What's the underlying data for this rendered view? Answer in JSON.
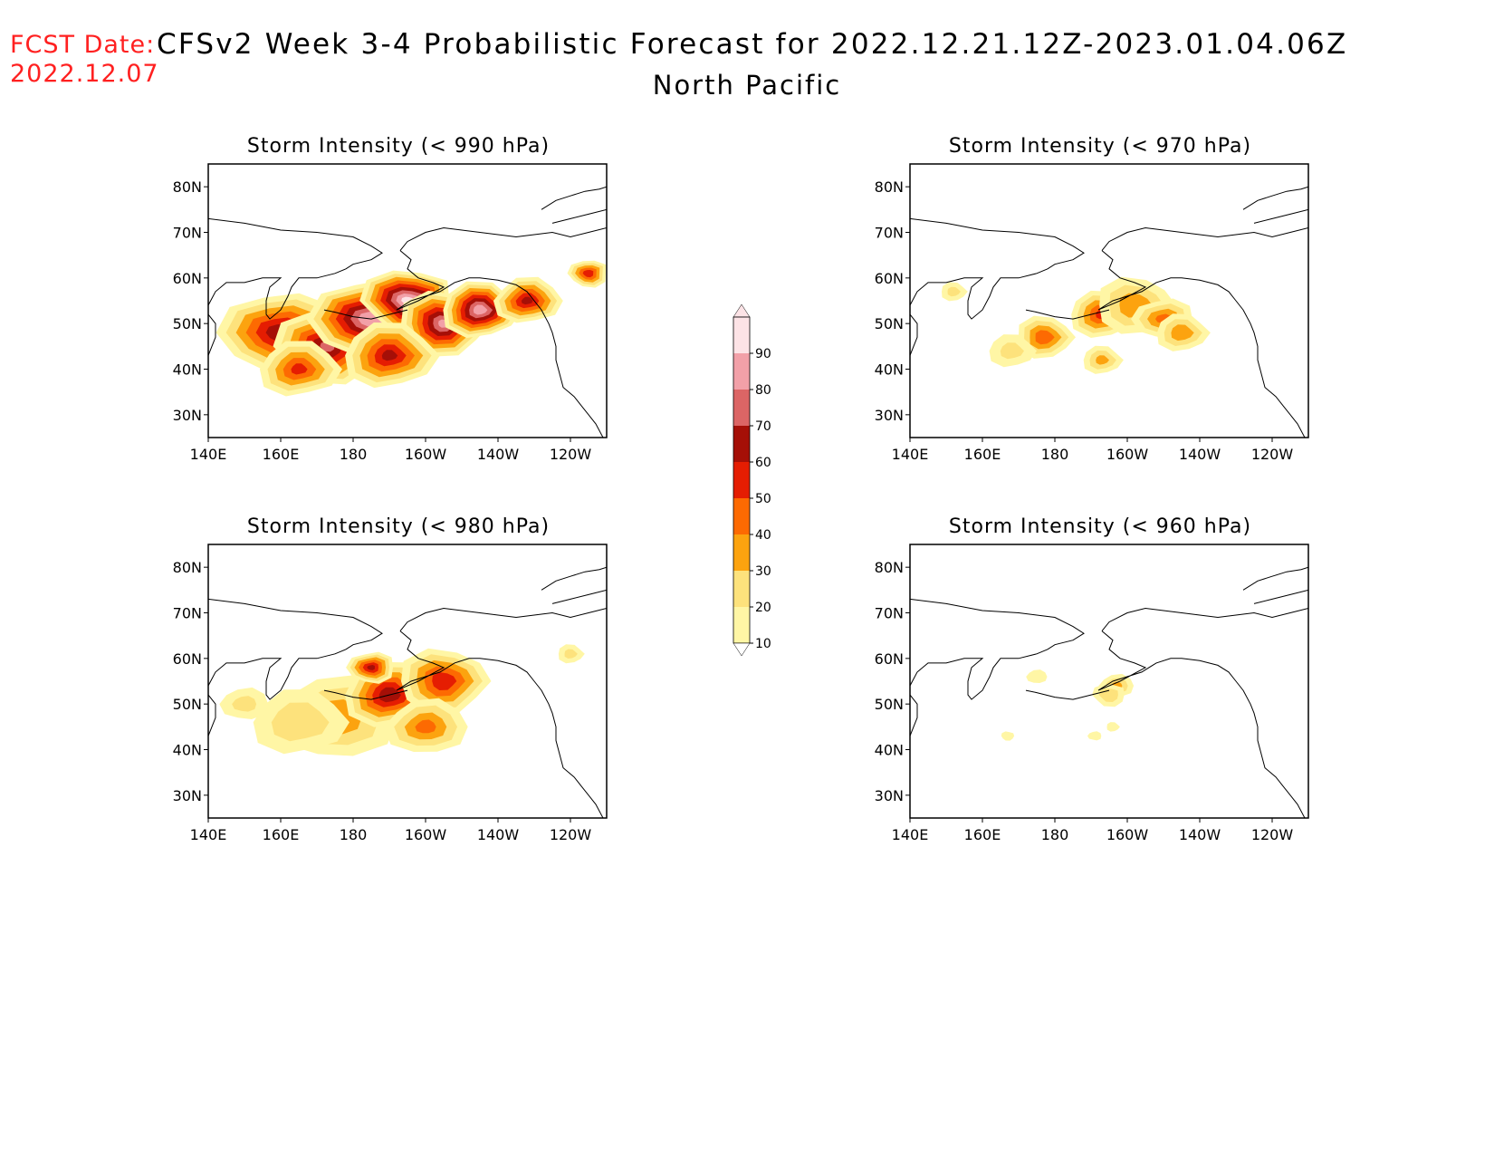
{
  "header": {
    "fcst_label": "FCST Date:",
    "fcst_date": "2022.12.07",
    "title": "CFSv2 Week 3-4 Probabilistic Forecast for 2022.12.21.12Z-2023.01.04.06Z",
    "subtitle": "North Pacific"
  },
  "axes": {
    "lat_labels": [
      "80N",
      "70N",
      "60N",
      "50N",
      "40N",
      "30N"
    ],
    "lat_values": [
      80,
      70,
      60,
      50,
      40,
      30
    ],
    "lon_labels": [
      "140E",
      "160E",
      "180",
      "160W",
      "140W",
      "120W"
    ],
    "lon_values": [
      140,
      160,
      180,
      200,
      220,
      240
    ],
    "lon_range": [
      140,
      250
    ],
    "lat_range": [
      25,
      85
    ]
  },
  "colorbar": {
    "levels": [
      "10",
      "20",
      "30",
      "40",
      "50",
      "60",
      "70",
      "80",
      "90"
    ],
    "colors": [
      "#fff6a5",
      "#fde27c",
      "#fca30f",
      "#fd6a02",
      "#e51d02",
      "#a50f07",
      "#dc6565",
      "#f2a0a8",
      "#fde3e6"
    ]
  },
  "panels": [
    {
      "id": "p990",
      "title": "Storm Intensity (< 990 hPa)",
      "blobs": [
        {
          "lon": 160,
          "lat": 48,
          "v": 65,
          "r": 18
        },
        {
          "lon": 173,
          "lat": 45,
          "v": 70,
          "r": 16
        },
        {
          "lon": 185,
          "lat": 51,
          "v": 88,
          "r": 18
        },
        {
          "lon": 195,
          "lat": 55,
          "v": 92,
          "r": 14
        },
        {
          "lon": 205,
          "lat": 50,
          "v": 80,
          "r": 14
        },
        {
          "lon": 215,
          "lat": 53,
          "v": 85,
          "r": 12
        },
        {
          "lon": 190,
          "lat": 43,
          "v": 60,
          "r": 14
        },
        {
          "lon": 165,
          "lat": 40,
          "v": 50,
          "r": 12
        },
        {
          "lon": 228,
          "lat": 55,
          "v": 60,
          "r": 10
        },
        {
          "lon": 245,
          "lat": 61,
          "v": 55,
          "r": 6
        }
      ]
    },
    {
      "id": "p970",
      "title": "Storm Intensity (< 970 hPa)",
      "blobs": [
        {
          "lon": 177,
          "lat": 47,
          "v": 45,
          "r": 9
        },
        {
          "lon": 193,
          "lat": 52,
          "v": 50,
          "r": 10
        },
        {
          "lon": 202,
          "lat": 54,
          "v": 35,
          "r": 12
        },
        {
          "lon": 210,
          "lat": 51,
          "v": 40,
          "r": 9
        },
        {
          "lon": 215,
          "lat": 48,
          "v": 35,
          "r": 8
        },
        {
          "lon": 168,
          "lat": 44,
          "v": 20,
          "r": 7
        },
        {
          "lon": 193,
          "lat": 42,
          "v": 30,
          "r": 6
        },
        {
          "lon": 152,
          "lat": 57,
          "v": 20,
          "r": 4
        }
      ]
    },
    {
      "id": "p980",
      "title": "Storm Intensity (< 980 hPa)",
      "blobs": [
        {
          "lon": 175,
          "lat": 47,
          "v": 35,
          "r": 18
        },
        {
          "lon": 190,
          "lat": 52,
          "v": 65,
          "r": 14
        },
        {
          "lon": 205,
          "lat": 55,
          "v": 55,
          "r": 14
        },
        {
          "lon": 165,
          "lat": 46,
          "v": 25,
          "r": 14
        },
        {
          "lon": 200,
          "lat": 45,
          "v": 40,
          "r": 12
        },
        {
          "lon": 150,
          "lat": 50,
          "v": 20,
          "r": 7
        },
        {
          "lon": 240,
          "lat": 61,
          "v": 20,
          "r": 4
        },
        {
          "lon": 185,
          "lat": 58,
          "v": 60,
          "r": 7
        }
      ]
    },
    {
      "id": "p960",
      "title": "Storm Intensity (< 960 hPa)",
      "blobs": [
        {
          "lon": 197,
          "lat": 54,
          "v": 30,
          "r": 5
        },
        {
          "lon": 195,
          "lat": 52,
          "v": 25,
          "r": 5
        },
        {
          "lon": 175,
          "lat": 56,
          "v": 15,
          "r": 3
        },
        {
          "lon": 167,
          "lat": 43,
          "v": 15,
          "r": 2
        },
        {
          "lon": 191,
          "lat": 43,
          "v": 12,
          "r": 2
        },
        {
          "lon": 196,
          "lat": 45,
          "v": 12,
          "r": 2
        }
      ]
    }
  ]
}
